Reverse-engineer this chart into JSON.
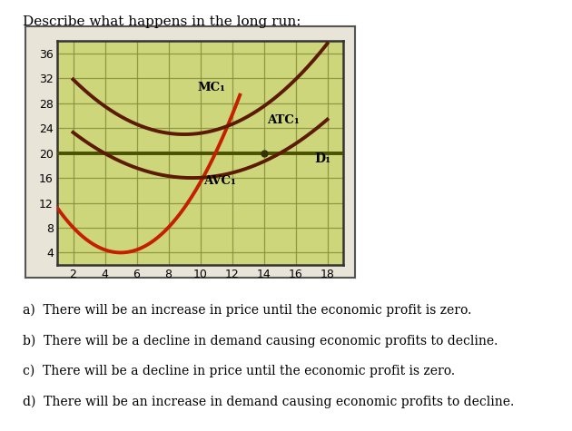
{
  "title": "Describe what happens in the long run:",
  "xlim": [
    1,
    19
  ],
  "ylim": [
    2,
    38
  ],
  "xticks": [
    2,
    4,
    6,
    8,
    10,
    12,
    14,
    16,
    18
  ],
  "yticks": [
    4,
    8,
    12,
    16,
    20,
    24,
    28,
    32,
    36
  ],
  "bg_color": "#cdd67a",
  "outer_bg": "#e8e4d8",
  "grid_color": "#8a9040",
  "MC1_color": "#c42000",
  "ATC1_color": "#5c1a00",
  "AVC1_color": "#5c1a00",
  "D1_color": "#4a5200",
  "D1_value": 20,
  "answers": [
    "a)  There will be an increase in price until the economic profit is zero.",
    "b)  There will be a decline in demand causing economic profits to decline.",
    "c)  There will be a decline in price until the economic profit is zero.",
    "d)  There will be an increase in demand causing economic profits to decline."
  ],
  "title_fontsize": 11,
  "answer_fontsize": 10
}
